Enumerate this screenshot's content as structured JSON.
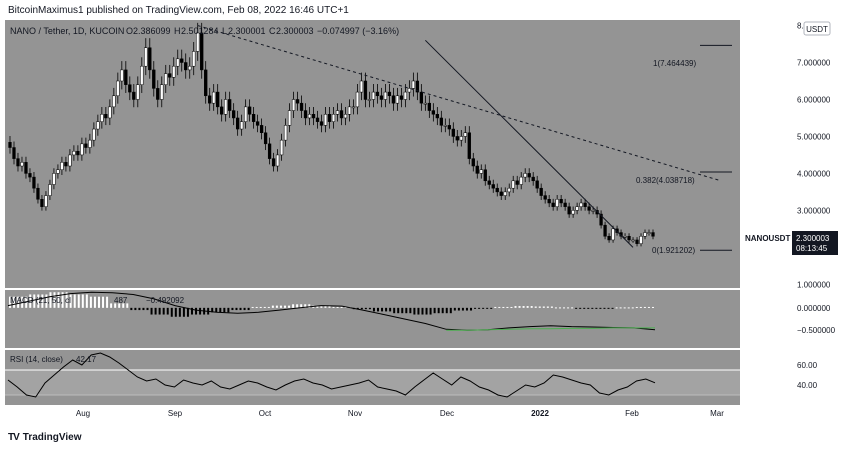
{
  "header": {
    "publish_line": "BitcoinMaximus1 published on TradingView.com, Feb 08, 2022 16:46 UTC+1",
    "symbol_line": "NANO / Tether, 1D, KUCOIN",
    "ohlc": {
      "o_label": "O",
      "o": "2.386099",
      "h_label": "H",
      "h": "2.501284",
      "l_label": "L",
      "l": "2.300001",
      "c_label": "C",
      "c": "2.300003",
      "change": "−0.074997 (−3.16%)"
    }
  },
  "currency_badge": "USDT",
  "price_tag": {
    "symbol": "NANOUSDT",
    "price": "2.300003",
    "countdown": "08:13:45"
  },
  "fib_labels": [
    {
      "text": "1(7.464439)",
      "value": 7.464439
    },
    {
      "text": "0.382(4.038718)",
      "value": 4.038718
    },
    {
      "text": "0(1.921202)",
      "value": 1.921202
    }
  ],
  "macd_header": {
    "label": "MACD (21, 50, cl",
    "mid_value": "487",
    "value": "−0.492092"
  },
  "rsi_header": {
    "label": "RSI (14, close)",
    "value": "42.17"
  },
  "footer": {
    "logo_mark": "TV",
    "logo_text": "TradingView"
  },
  "colors": {
    "panel_bg": "#949494",
    "rsi_band": "#a3a3a3",
    "fib_line": "#131722",
    "signal_line": "#4caf50",
    "up_candle": "#ffffff",
    "down_candle": "#000000"
  },
  "chart_data": [
    {
      "type": "candlestick",
      "title": "NANO / Tether, 1D, KUCOIN",
      "x_ticks": [
        "Aug",
        "Sep",
        "Oct",
        "Nov",
        "Dec",
        "2022",
        "Feb",
        "Mar"
      ],
      "y_ticks": [
        "8.000000",
        "7.000000",
        "6.000000",
        "5.000000",
        "4.000000",
        "3.000000",
        "2.000000",
        "1.000000"
      ],
      "ylim": [
        0.9,
        8.15
      ],
      "grid": false,
      "series": [
        {
          "name": "NANOUSDT",
          "values": [
            4.7,
            4.4,
            4.2,
            4.3,
            4.0,
            3.9,
            3.6,
            3.3,
            3.1,
            3.4,
            3.7,
            4.0,
            4.1,
            4.3,
            4.2,
            4.5,
            4.6,
            4.5,
            4.8,
            4.7,
            4.9,
            5.2,
            5.4,
            5.6,
            5.5,
            5.8,
            6.1,
            6.5,
            6.8,
            6.4,
            6.2,
            6.0,
            6.4,
            6.9,
            7.4,
            6.8,
            6.3,
            6.0,
            6.4,
            6.7,
            6.6,
            6.9,
            7.1,
            7.0,
            6.8,
            6.9,
            7.3,
            7.8,
            6.8,
            6.1,
            5.9,
            6.2,
            5.8,
            5.6,
            6.0,
            5.7,
            5.5,
            5.2,
            5.4,
            5.8,
            5.6,
            5.4,
            5.3,
            5.1,
            4.8,
            4.4,
            4.2,
            4.5,
            4.9,
            5.3,
            5.7,
            6.0,
            5.9,
            5.7,
            5.5,
            5.6,
            5.5,
            5.4,
            5.3,
            5.6,
            5.4,
            5.6,
            5.7,
            5.5,
            5.6,
            5.8,
            5.8,
            6.2,
            6.5,
            6.0,
            6.0,
            6.2,
            6.1,
            6.0,
            6.2,
            6.1,
            5.9,
            6.1,
            6.0,
            6.2,
            6.3,
            6.5,
            6.2,
            5.9,
            5.9,
            5.7,
            5.6,
            5.5,
            5.3,
            5.3,
            5.2,
            5.0,
            4.9,
            5.0,
            5.1,
            4.4,
            4.2,
            4.0,
            4.1,
            3.8,
            3.7,
            3.6,
            3.5,
            3.4,
            3.5,
            3.6,
            3.8,
            3.7,
            3.9,
            4.0,
            3.9,
            3.8,
            3.6,
            3.4,
            3.3,
            3.2,
            3.1,
            3.3,
            3.2,
            3.1,
            2.9,
            3.0,
            3.1,
            3.2,
            3.1,
            3.0,
            3.0,
            2.9,
            2.6,
            2.3,
            2.2,
            2.5,
            2.4,
            2.3,
            2.3,
            2.2,
            2.2,
            2.1,
            2.3,
            2.4,
            2.4,
            2.3
          ]
        }
      ],
      "trendlines": [
        {
          "name": "descending-resistance",
          "style": "solid",
          "from": {
            "x_index": 104,
            "y": 7.6
          },
          "to": {
            "x_index": 156,
            "y": 2.0
          }
        },
        {
          "name": "long-term-resistance",
          "style": "dashed",
          "from": {
            "x_index": 47,
            "y": 8.0
          },
          "to": {
            "x_index": 178,
            "y": 3.8
          }
        }
      ]
    },
    {
      "type": "histogram-line",
      "title": "MACD (21, 50, close)",
      "y_ticks": [
        "0.000000",
        "−0.500000"
      ],
      "ylim": [
        -0.9,
        0.4
      ],
      "grid": false,
      "series": [
        {
          "name": "MACD",
          "values": [
            0.05,
            0.15,
            0.25,
            0.32,
            0.35,
            0.34,
            0.3,
            0.2,
            0.05,
            -0.05,
            -0.1,
            -0.12,
            -0.1,
            -0.05,
            0.0,
            0.05,
            0.04,
            -0.05,
            -0.15,
            -0.25,
            -0.35,
            -0.48,
            -0.5,
            -0.49,
            -0.45,
            -0.42,
            -0.4,
            -0.42,
            -0.43,
            -0.44,
            -0.45,
            -0.49
          ]
        },
        {
          "name": "Signal",
          "values": [
            null,
            null,
            null,
            null,
            null,
            null,
            null,
            null,
            null,
            null,
            null,
            null,
            null,
            null,
            null,
            null,
            null,
            null,
            null,
            null,
            null,
            -0.5,
            -0.5,
            -0.49,
            -0.48,
            -0.47,
            -0.47,
            -0.46,
            -0.46,
            -0.45,
            -0.45,
            -0.45
          ]
        },
        {
          "name": "Histogram",
          "values": [
            0.25,
            0.3,
            0.35,
            0.3,
            0.25,
            0.1,
            -0.05,
            -0.15,
            -0.2,
            -0.15,
            -0.1,
            -0.05,
            0.02,
            0.05,
            0.08,
            0.05,
            0.02,
            -0.03,
            -0.08,
            -0.12,
            -0.15,
            -0.12,
            -0.06,
            -0.02,
            0.02,
            0.04,
            0.03,
            0.01,
            -0.01,
            -0.01,
            0.01,
            0.02
          ]
        }
      ]
    },
    {
      "type": "line",
      "title": "RSI (14, close)",
      "y_ticks": [
        "60.00",
        "40.00"
      ],
      "ylim": [
        20,
        75
      ],
      "grid": false,
      "series": [
        {
          "name": "RSI",
          "values": [
            45,
            38,
            30,
            28,
            42,
            50,
            58,
            65,
            60,
            70,
            72,
            68,
            62,
            55,
            48,
            44,
            46,
            40,
            38,
            45,
            42,
            40,
            44,
            38,
            36,
            40,
            44,
            42,
            38,
            35,
            40,
            44,
            46,
            42,
            40,
            36,
            38,
            40,
            42,
            45,
            38,
            36,
            34,
            30,
            38,
            45,
            52,
            46,
            40,
            48,
            44,
            38,
            35,
            30,
            28,
            34,
            40,
            38,
            42,
            50,
            48,
            45,
            42,
            40,
            32,
            30,
            35,
            38,
            44,
            46,
            42.17
          ]
        }
      ]
    }
  ]
}
